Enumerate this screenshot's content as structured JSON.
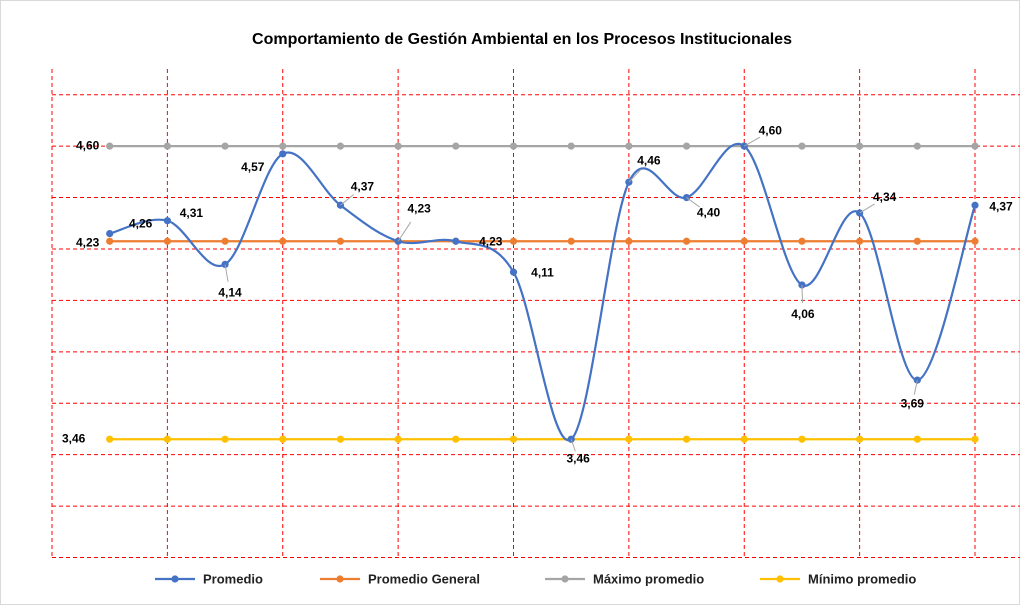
{
  "chart_data": {
    "type": "line",
    "title": "Comportamiento de Gestión Ambiental en los Procesos Institucionales",
    "categories": [
      null,
      null,
      null,
      null,
      null,
      null,
      null,
      null,
      null,
      null,
      null,
      null,
      null,
      null,
      null,
      null
    ],
    "series": [
      {
        "name": "Promedio",
        "color": "#4472c4",
        "smooth": true,
        "values": [
          4.26,
          4.31,
          4.14,
          4.57,
          4.37,
          4.23,
          4.23,
          4.11,
          3.46,
          4.46,
          4.4,
          4.6,
          4.06,
          4.34,
          3.69,
          4.37
        ],
        "value_labels": [
          "4,26",
          "4,31",
          "4,14",
          "4,57",
          "4,37",
          "4,23",
          "4,23",
          "4,11",
          "3,46",
          "4,46",
          "4,40",
          "4,60",
          "4,06",
          "4,34",
          "3,69",
          "4,37"
        ]
      },
      {
        "name": "Promedio General",
        "color": "#ed7d31",
        "values": [
          4.23,
          4.23,
          4.23,
          4.23,
          4.23,
          4.23,
          4.23,
          4.23,
          4.23,
          4.23,
          4.23,
          4.23,
          4.23,
          4.23,
          4.23,
          4.23
        ],
        "value_labels": [
          "4,23",
          null,
          null,
          null,
          null,
          null,
          null,
          null,
          null,
          null,
          null,
          null,
          null,
          null,
          null,
          null
        ]
      },
      {
        "name": "Máximo promedio",
        "color": "#a5a5a5",
        "values": [
          4.6,
          4.6,
          4.6,
          4.6,
          4.6,
          4.6,
          4.6,
          4.6,
          4.6,
          4.6,
          4.6,
          4.6,
          4.6,
          4.6,
          4.6,
          4.6
        ],
        "value_labels": [
          "4,60",
          null,
          null,
          null,
          null,
          null,
          null,
          null,
          null,
          null,
          null,
          null,
          null,
          null,
          null,
          null
        ]
      },
      {
        "name": "Mínimo promedio",
        "color": "#ffc000",
        "values": [
          3.46,
          3.46,
          3.46,
          3.46,
          3.46,
          3.46,
          3.46,
          3.46,
          3.46,
          3.46,
          3.46,
          3.46,
          3.46,
          3.46,
          3.46,
          3.46
        ],
        "value_labels": [
          "3,46",
          null,
          null,
          null,
          null,
          null,
          null,
          null,
          null,
          null,
          null,
          null,
          null,
          null,
          null,
          null
        ]
      }
    ],
    "ylim": [
      3.0,
      4.9
    ],
    "yticks": [
      3.0,
      3.2,
      3.4,
      3.6,
      3.8,
      4.0,
      4.2,
      4.4,
      4.6,
      4.8
    ],
    "grid": true,
    "legend": "bottom"
  }
}
